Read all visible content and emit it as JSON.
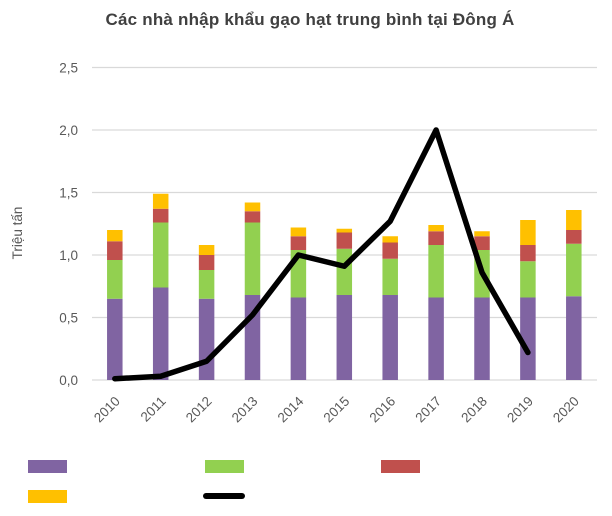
{
  "page": {
    "background": "#ffffff"
  },
  "chart_data": {
    "type": "bar",
    "subtype": "stacked-bar-with-line-overlay",
    "title": "Các nhà nhập khẩu gạo hạt trung bình tại Đông Á",
    "ylabel": "Triệu tấn",
    "xlabel": "",
    "categories": [
      "2010",
      "2011",
      "2012",
      "2013",
      "2014",
      "2015",
      "2016",
      "2017",
      "2018",
      "2019",
      "2020"
    ],
    "ylim": [
      0,
      2.5
    ],
    "ytick_labels": [
      "0,0",
      "0,5",
      "1,0",
      "1,5",
      "2,0",
      "2,5"
    ],
    "ytick_values": [
      0,
      0.5,
      1.0,
      1.5,
      2.0,
      2.5
    ],
    "grid": true,
    "legend_position": "bottom",
    "legend_has_text_labels": false,
    "series": [
      {
        "id": "purple",
        "type": "bar",
        "color": "#8064A2",
        "values": [
          0.65,
          0.74,
          0.65,
          0.68,
          0.66,
          0.68,
          0.68,
          0.66,
          0.66,
          0.66,
          0.67
        ]
      },
      {
        "id": "green",
        "type": "bar",
        "color": "#92D050",
        "values": [
          0.31,
          0.52,
          0.23,
          0.58,
          0.38,
          0.37,
          0.29,
          0.42,
          0.38,
          0.29,
          0.42
        ]
      },
      {
        "id": "red",
        "type": "bar",
        "color": "#C0504D",
        "values": [
          0.15,
          0.11,
          0.12,
          0.09,
          0.11,
          0.13,
          0.13,
          0.11,
          0.11,
          0.13,
          0.11
        ]
      },
      {
        "id": "yellow",
        "type": "bar",
        "color": "#FFC000",
        "values": [
          0.09,
          0.12,
          0.08,
          0.07,
          0.07,
          0.03,
          0.05,
          0.05,
          0.04,
          0.2,
          0.16
        ]
      },
      {
        "id": "black-line",
        "type": "line",
        "color": "#000000",
        "values": [
          0.01,
          0.03,
          0.15,
          0.52,
          1.0,
          0.91,
          1.27,
          2.0,
          0.86,
          0.22,
          null
        ]
      }
    ],
    "colors": {
      "title_text": "#404040",
      "axis_text": "#595959",
      "gridline": "#D9D9D9",
      "bar_purple": "#8064A2",
      "bar_green": "#92D050",
      "bar_red": "#C0504D",
      "bar_yellow": "#FFC000",
      "line_black": "#000000"
    }
  }
}
